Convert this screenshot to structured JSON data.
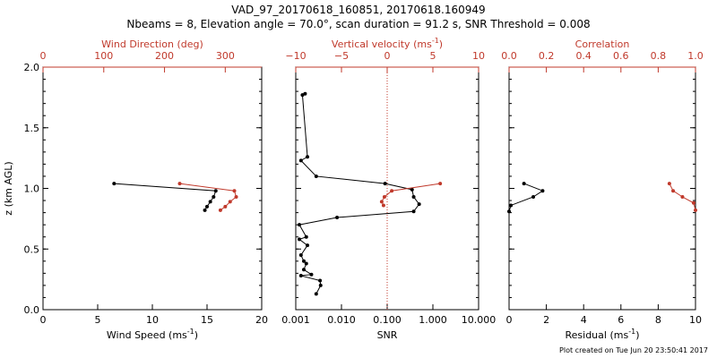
{
  "chart_data": {
    "title_line1": "VAD_97_20170618_160851, 20170618.160949",
    "title_line2": "Nbeams = 8, Elevation angle = 70.0°, scan duration = 91.2 s, SNR Threshold = 0.008",
    "footer": "Plot created on Tue Jun 20 23:50:41 2017",
    "colors": {
      "primary": "#000000",
      "secondary": "#c0392b"
    },
    "y_axis": {
      "label": "z (km AGL)",
      "ylim": [
        0,
        2.0
      ],
      "ticks": [
        0.0,
        0.5,
        1.0,
        1.5,
        2.0
      ],
      "tick_labels": [
        "0.0",
        "0.5",
        "1.0",
        "1.5",
        "2.0"
      ]
    },
    "panels": [
      {
        "type": "line",
        "bottom_axis": {
          "label": "Wind Speed (ms",
          "label_sup": "-1",
          "label_end": ")",
          "lim": [
            0,
            20
          ],
          "scale": "linear",
          "ticks": [
            0,
            5,
            10,
            15,
            20
          ],
          "tick_labels": [
            "0",
            "5",
            "10",
            "15",
            "20"
          ]
        },
        "top_axis": {
          "label": "Wind Direction (deg)",
          "lim": [
            0,
            360
          ],
          "scale": "linear",
          "ticks": [
            0,
            100,
            200,
            300
          ],
          "tick_labels": [
            "0",
            "100",
            "200",
            "300"
          ]
        },
        "bottom_series": {
          "x": [
            6.5,
            15.8,
            15.6,
            15.3,
            15.0,
            14.8
          ],
          "y": [
            1.04,
            0.98,
            0.93,
            0.89,
            0.85,
            0.82
          ]
        },
        "top_series": {
          "x": [
            225,
            315,
            318,
            308,
            300,
            292
          ],
          "y": [
            1.04,
            0.98,
            0.93,
            0.89,
            0.85,
            0.82
          ]
        }
      },
      {
        "type": "line",
        "bottom_axis": {
          "label": "SNR",
          "label_sup": "",
          "label_end": "",
          "lim": [
            0.001,
            10
          ],
          "scale": "log",
          "ticks": [
            0.001,
            0.01,
            0.1,
            1,
            10
          ],
          "tick_labels": [
            "0.001",
            "0.010",
            "0.100",
            "1.000",
            "10.000"
          ]
        },
        "top_axis": {
          "label": "Vertical velocity (ms",
          "label_sup": "-1",
          "label_end": ")",
          "lim": [
            -10,
            10
          ],
          "scale": "linear",
          "ticks": [
            -10,
            -5,
            0,
            5,
            10
          ],
          "tick_labels": [
            "−10",
            "−5",
            "0",
            "5",
            "10"
          ]
        },
        "zero_line": 0,
        "bottom_series": {
          "x": [
            0.0016,
            0.0014,
            0.0018,
            0.0013,
            0.0028,
            0.09,
            0.35,
            0.38,
            0.5,
            0.38,
            0.008,
            0.0012,
            0.0017,
            0.0012,
            0.0018,
            0.0013,
            0.0015,
            0.0017,
            0.0015,
            0.0022,
            0.0013,
            0.0034,
            0.0035,
            0.0028
          ],
          "y": [
            1.78,
            1.77,
            1.26,
            1.23,
            1.1,
            1.04,
            0.99,
            0.93,
            0.87,
            0.81,
            0.76,
            0.7,
            0.6,
            0.58,
            0.53,
            0.45,
            0.4,
            0.38,
            0.33,
            0.29,
            0.28,
            0.24,
            0.2,
            0.13
          ]
        },
        "top_series": {
          "x": [
            5.8,
            0.5,
            -0.3,
            -0.6,
            -0.4
          ],
          "y": [
            1.04,
            0.98,
            0.93,
            0.89,
            0.86
          ]
        }
      },
      {
        "type": "line",
        "bottom_axis": {
          "label": "Residual (ms",
          "label_sup": "-1",
          "label_end": ")",
          "lim": [
            0,
            10
          ],
          "scale": "linear",
          "ticks": [
            0,
            2,
            4,
            6,
            8,
            10
          ],
          "tick_labels": [
            "0",
            "2",
            "4",
            "6",
            "8",
            "10"
          ]
        },
        "top_axis": {
          "label": "Correlation",
          "lim": [
            0,
            1.0
          ],
          "scale": "linear",
          "ticks": [
            0.0,
            0.2,
            0.4,
            0.6,
            0.8,
            1.0
          ],
          "tick_labels": [
            "0.0",
            "0.2",
            "0.4",
            "0.6",
            "0.8",
            "1.0"
          ]
        },
        "bottom_series": {
          "x": [
            0.8,
            1.8,
            1.3,
            0.1,
            0.0
          ],
          "y": [
            1.04,
            0.98,
            0.93,
            0.86,
            0.81
          ]
        },
        "top_series": {
          "x": [
            0.86,
            0.88,
            0.93,
            0.99,
            1.0
          ],
          "y": [
            1.04,
            0.98,
            0.93,
            0.88,
            0.82
          ]
        }
      }
    ]
  }
}
